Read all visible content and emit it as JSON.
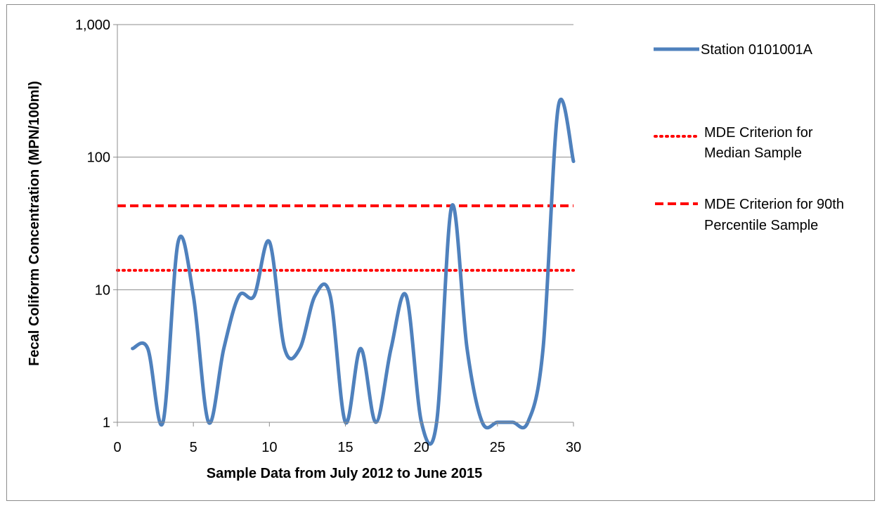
{
  "chart_data": {
    "type": "line",
    "title": "",
    "xlabel": "Sample Data from July 2012 to June 2015",
    "ylabel": "Fecal Coliform Concentration (MPN/100ml)",
    "xlim": [
      0,
      30
    ],
    "ylim": [
      1,
      1000
    ],
    "y_scale": "log",
    "x_ticks": [
      0,
      5,
      10,
      15,
      20,
      25,
      30
    ],
    "x_tick_labels": [
      "0",
      "5",
      "10",
      "15",
      "20",
      "25",
      "30"
    ],
    "y_ticks": [
      1,
      10,
      100,
      1000
    ],
    "y_tick_labels": [
      "1",
      "10",
      "100",
      "1,000"
    ],
    "grid": "horizontal",
    "legend_position": "right",
    "series": [
      {
        "name": "Station 0101001A",
        "style": "smooth-solid",
        "color": "#4f81bd",
        "x": [
          1,
          2,
          3,
          4,
          5,
          6,
          7,
          8,
          9,
          10,
          11,
          12,
          13,
          14,
          15,
          16,
          17,
          18,
          19,
          20,
          21,
          22,
          23,
          24,
          25,
          26,
          27,
          28,
          29,
          30
        ],
        "y": [
          3.6,
          3.6,
          1,
          23,
          9,
          1,
          3.6,
          9,
          9,
          23,
          3.6,
          3.6,
          9,
          9,
          1,
          3.6,
          1,
          3.6,
          9,
          1,
          1,
          43,
          3.6,
          1,
          1,
          1,
          1,
          3.6,
          240,
          93
        ]
      },
      {
        "name": "MDE Criterion for Median Sample",
        "style": "dotted",
        "color": "#ff0000",
        "y_constant": 14
      },
      {
        "name": "MDE Criterion for 90th Percentile Sample",
        "style": "dashed",
        "color": "#ff0000",
        "y_constant": 43
      }
    ]
  },
  "legend": {
    "entries": [
      {
        "lines": [
          "Station 0101001A"
        ]
      },
      {
        "lines": [
          "MDE Criterion for",
          "Median Sample"
        ]
      },
      {
        "lines": [
          "MDE Criterion for 90th",
          "Percentile Sample"
        ]
      }
    ]
  }
}
